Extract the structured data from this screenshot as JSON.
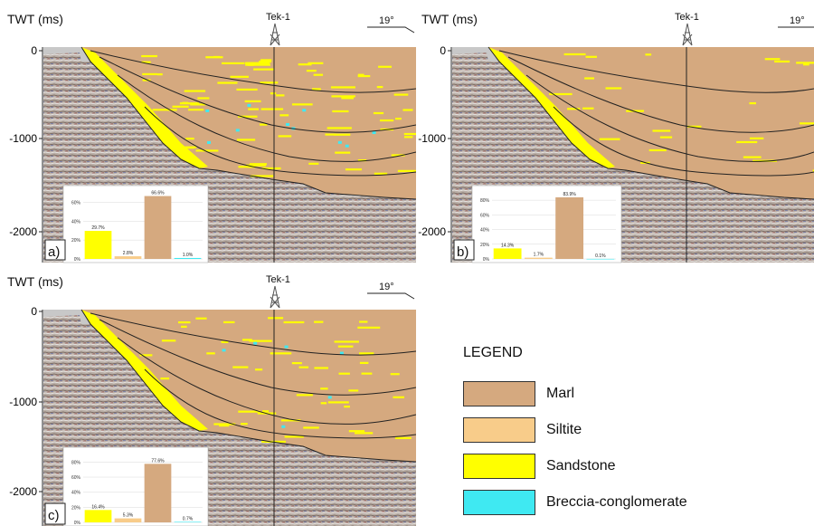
{
  "colors": {
    "marl": "#d5a97f",
    "siltite": "#f8cc8a",
    "sandstone": "#ffff00",
    "breccia": "#3fe9f2",
    "seismic": "#8a7a70"
  },
  "panels": [
    {
      "id": "a",
      "axis_title": "TWT (ms)",
      "ticks": [
        "0",
        "-1000",
        "-2000"
      ],
      "well": "Tek-1",
      "dip": "19°",
      "tag": "a)",
      "facies_mix": "sand-rich"
    },
    {
      "id": "b",
      "axis_title": "TWT (ms)",
      "ticks": [
        "0",
        "-1000",
        "-2000"
      ],
      "well": "Tek-1",
      "dip": "19°",
      "tag": "b)",
      "facies_mix": "marl-rich"
    },
    {
      "id": "c",
      "axis_title": "TWT (ms)",
      "ticks": [
        "0",
        "-1000",
        "-2000"
      ],
      "well": "Tek-1",
      "dip": "19°",
      "tag": "c)",
      "facies_mix": "intermediate"
    }
  ],
  "chart_data": [
    {
      "type": "bar",
      "panel": "a",
      "categories": [
        "Sandstone",
        "Siltite",
        "Marl",
        "Breccia-conglomerate"
      ],
      "values": [
        29.7,
        2.8,
        66.6,
        1.0
      ],
      "data_labels": [
        "29.7%",
        "2.8%",
        "66.6%",
        "1.0%"
      ],
      "y_ticks": [
        "0%",
        "20%",
        "40%",
        "60%"
      ],
      "ylim": [
        0,
        70
      ],
      "grid": true
    },
    {
      "type": "bar",
      "panel": "b",
      "categories": [
        "Sandstone",
        "Siltite",
        "Marl",
        "Breccia-conglomerate"
      ],
      "values": [
        14.3,
        1.7,
        83.9,
        0.1
      ],
      "data_labels": [
        "14.3%",
        "1.7%",
        "83.9%",
        "0.1%"
      ],
      "y_ticks": [
        "0%",
        "20%",
        "40%",
        "60%",
        "80%"
      ],
      "ylim": [
        0,
        90
      ],
      "grid": true
    },
    {
      "type": "bar",
      "panel": "c",
      "categories": [
        "Sandstone",
        "Siltite",
        "Marl",
        "Breccia-conglomerate"
      ],
      "values": [
        16.4,
        5.3,
        77.6,
        0.7
      ],
      "data_labels": [
        "16.4%",
        "5.3%",
        "77.6%",
        "0.7%"
      ],
      "y_ticks": [
        "0%",
        "20%",
        "40%",
        "60%",
        "80%"
      ],
      "ylim": [
        0,
        90
      ],
      "grid": true
    }
  ],
  "legend": {
    "title": "LEGEND",
    "items": [
      {
        "label": "Marl",
        "color": "#d5a97f"
      },
      {
        "label": "Siltite",
        "color": "#f8cc8a"
      },
      {
        "label": "Sandstone",
        "color": "#ffff00"
      },
      {
        "label": "Breccia-conglomerate",
        "color": "#3fe9f2"
      }
    ]
  }
}
